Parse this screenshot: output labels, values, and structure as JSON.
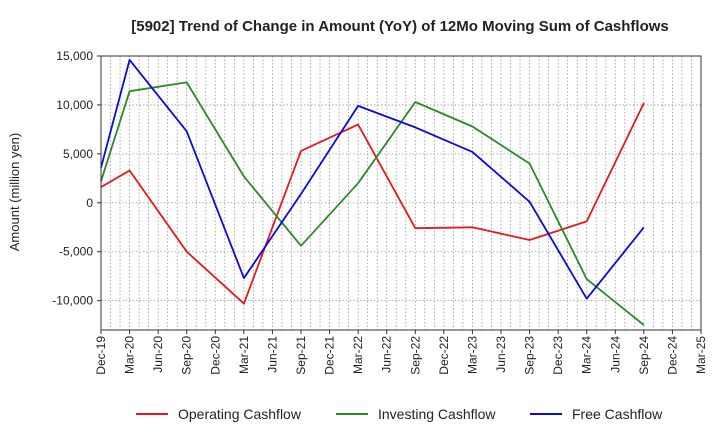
{
  "chart_data": {
    "type": "line",
    "title": "[5902]  Trend of Change in Amount (YoY) of 12Mo Moving Sum of Cashflows",
    "xlabel": "",
    "ylabel": "Amount (million yen)",
    "ylim": [
      -13000,
      15000
    ],
    "yticks": [
      15000,
      10000,
      5000,
      0,
      -5000,
      -10000
    ],
    "ytick_labels": [
      "15,000",
      "10,000",
      "5,000",
      "0",
      "-5,000",
      "-10,000"
    ],
    "categories": [
      "Dec-19",
      "Mar-20",
      "Jun-20",
      "Sep-20",
      "Dec-20",
      "Mar-21",
      "Jun-21",
      "Sep-21",
      "Dec-21",
      "Mar-22",
      "Jun-22",
      "Sep-22",
      "Dec-22",
      "Mar-23",
      "Jun-23",
      "Sep-23",
      "Dec-23",
      "Mar-24",
      "Jun-24",
      "Sep-24",
      "Dec-24",
      "Mar-25"
    ],
    "grid": true,
    "legend_position": "bottom",
    "series": [
      {
        "name": "Operating Cashflow",
        "color": "#e41a1c",
        "points": [
          {
            "x": "Dec-19",
            "y": 1600
          },
          {
            "x": "Mar-20",
            "y": 3300
          },
          {
            "x": "Sep-20",
            "y": -5000
          },
          {
            "x": "Mar-21",
            "y": -10300
          },
          {
            "x": "Sep-21",
            "y": 5300
          },
          {
            "x": "Mar-22",
            "y": 8000
          },
          {
            "x": "Sep-22",
            "y": -2600
          },
          {
            "x": "Mar-23",
            "y": -2500
          },
          {
            "x": "Sep-23",
            "y": -3800
          },
          {
            "x": "Mar-24",
            "y": -1900
          },
          {
            "x": "Sep-24",
            "y": 10200
          }
        ]
      },
      {
        "name": "Investing Cashflow",
        "color": "#2a8a2a",
        "points": [
          {
            "x": "Dec-19",
            "y": 2200
          },
          {
            "x": "Mar-20",
            "y": 11400
          },
          {
            "x": "Sep-20",
            "y": 12300
          },
          {
            "x": "Mar-21",
            "y": 2700
          },
          {
            "x": "Sep-21",
            "y": -4400
          },
          {
            "x": "Mar-22",
            "y": 2000
          },
          {
            "x": "Sep-22",
            "y": 10300
          },
          {
            "x": "Mar-23",
            "y": 7800
          },
          {
            "x": "Sep-23",
            "y": 4000
          },
          {
            "x": "Mar-24",
            "y": -7800
          },
          {
            "x": "Sep-24",
            "y": -12500
          }
        ]
      },
      {
        "name": "Free Cashflow",
        "color": "#0a0ae0",
        "points": [
          {
            "x": "Dec-19",
            "y": 3600
          },
          {
            "x": "Mar-20",
            "y": 14600
          },
          {
            "x": "Sep-20",
            "y": 7300
          },
          {
            "x": "Mar-21",
            "y": -7700
          },
          {
            "x": "Sep-21",
            "y": 900
          },
          {
            "x": "Mar-22",
            "y": 9900
          },
          {
            "x": "Sep-22",
            "y": 7700
          },
          {
            "x": "Mar-23",
            "y": 5200
          },
          {
            "x": "Sep-23",
            "y": 100
          },
          {
            "x": "Mar-24",
            "y": -9800
          },
          {
            "x": "Sep-24",
            "y": -2500
          }
        ]
      }
    ]
  }
}
